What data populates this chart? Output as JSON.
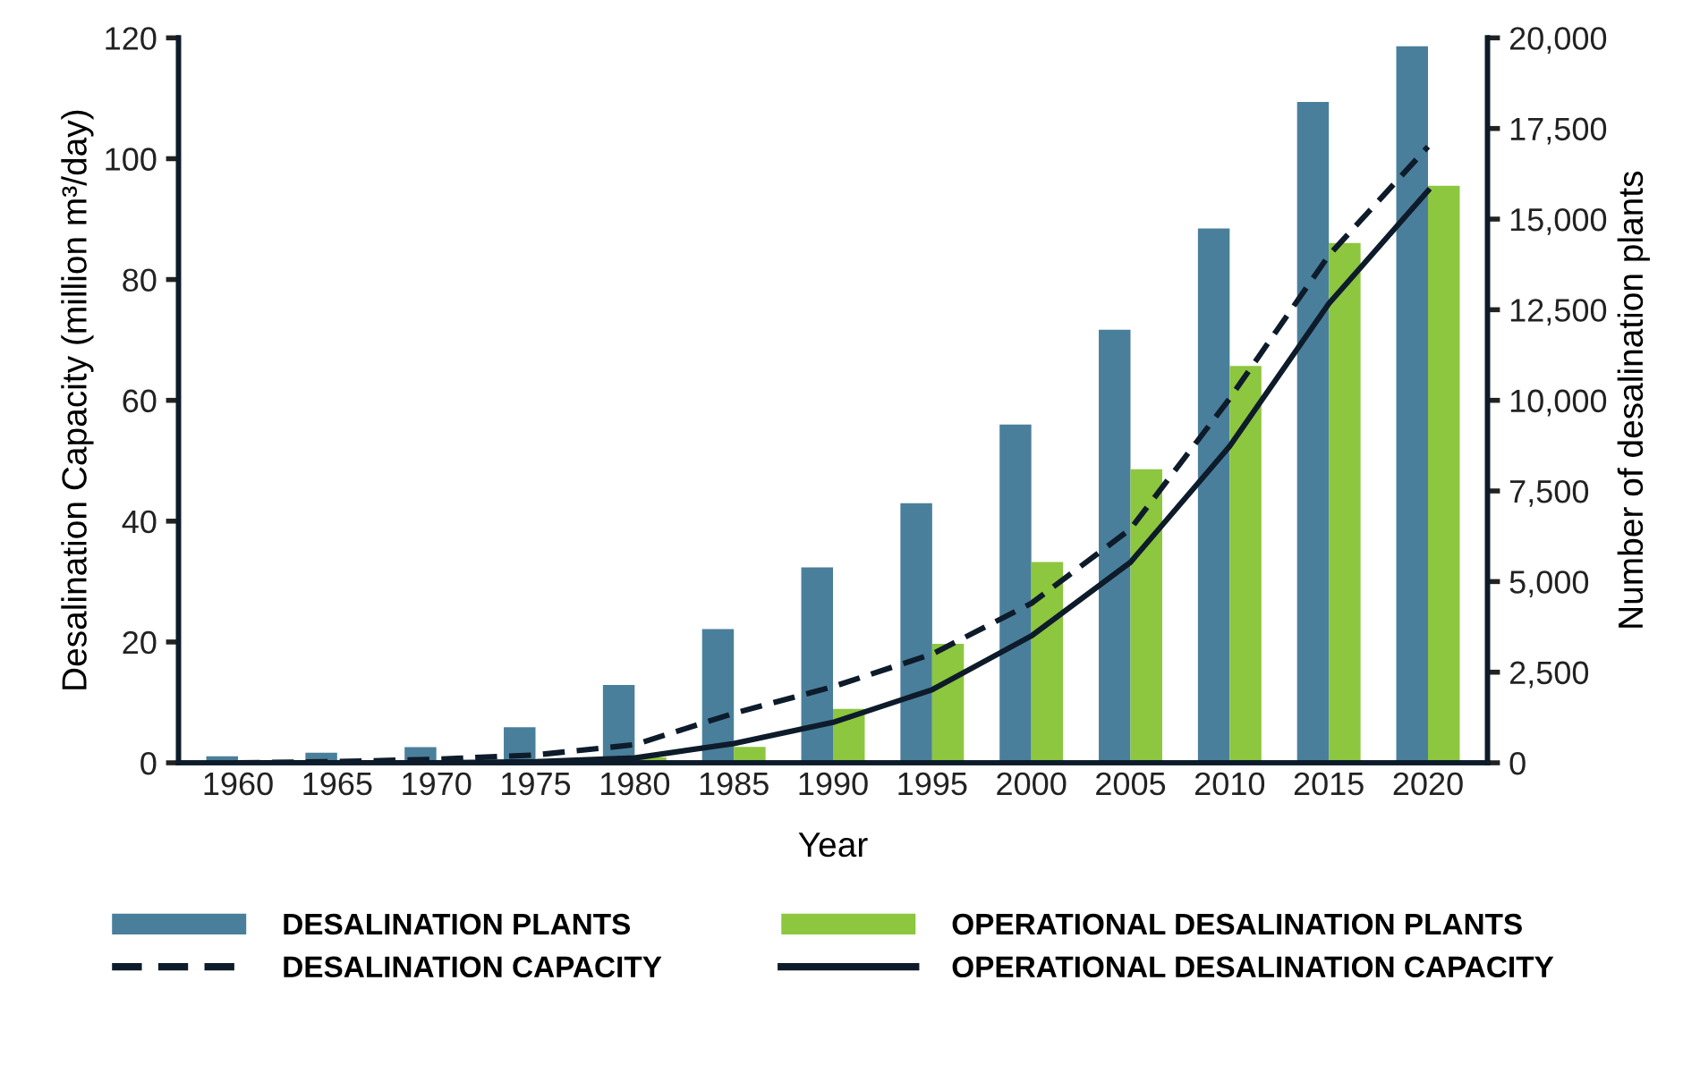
{
  "chart_data": {
    "type": "bar",
    "xlabel": "Year",
    "ylabel": "Desalination Capacity (million m³/day)",
    "y2label": "Number of desalination plants",
    "categories": [
      "1960",
      "1965",
      "1970",
      "1975",
      "1980",
      "1985",
      "1990",
      "1995",
      "2000",
      "2005",
      "2010",
      "2015",
      "2020"
    ],
    "series": [
      {
        "name": "DESALINATION PLANTS",
        "axis": "y2",
        "color": "#4a7f9b",
        "values": [
          180,
          280,
          430,
          980,
          2150,
          3690,
          5390,
          7160,
          9330,
          11950,
          14740,
          18230,
          19770
        ]
      },
      {
        "name": "OPERATIONAL DESALINATION PLANTS",
        "axis": "y2",
        "color": "#8dc63f",
        "values": [
          0,
          0,
          0,
          0,
          150,
          440,
          1490,
          3280,
          5540,
          8100,
          10950,
          14340,
          15920
        ]
      },
      {
        "name": "DESALINATION CAPACITY",
        "type": "line",
        "axis": "y",
        "color": "#0d1b2a",
        "line_style": "dashed",
        "values": [
          0,
          0.2,
          0.6,
          1.3,
          3,
          8.2,
          12.6,
          18,
          26.4,
          38.7,
          60.3,
          84,
          102
        ]
      },
      {
        "name": "OPERATIONAL DESALINATION CAPACITY",
        "type": "line",
        "axis": "y",
        "color": "#0d1b2a",
        "line_style": "solid",
        "values": [
          0,
          0,
          0,
          0.2,
          0.8,
          3.2,
          6.7,
          12.1,
          21,
          33.2,
          52.4,
          76,
          94.7
        ]
      }
    ],
    "ylim": [
      0,
      120
    ],
    "yticks": [
      0,
      20,
      40,
      60,
      80,
      100,
      120
    ],
    "y2lim": [
      0,
      20000
    ],
    "y2ticks": [
      0,
      {
        "value": 2500,
        "label": "2,500"
      },
      {
        "value": 5000,
        "label": "5,000"
      },
      {
        "value": 7500,
        "label": "7,500"
      },
      {
        "value": 10000,
        "label": "10,000"
      },
      {
        "value": 12500,
        "label": "12,500"
      },
      {
        "value": 15000,
        "label": "15,000"
      },
      {
        "value": 17500,
        "label": "17,500"
      },
      {
        "value": 20000,
        "label": "20,000"
      }
    ],
    "grid": false,
    "legend": "bottom",
    "marker": "none"
  }
}
